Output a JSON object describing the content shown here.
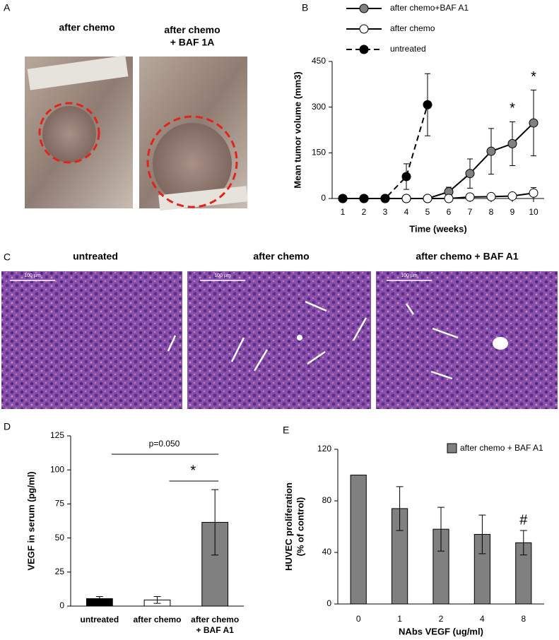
{
  "panels": {
    "A": {
      "label": "A",
      "captions": [
        "after chemo",
        "after chemo\n+ BAF 1A"
      ]
    },
    "B": {
      "label": "B"
    },
    "C": {
      "label": "C",
      "captions": [
        "untreated",
        "after chemo",
        "after chemo + BAF A1"
      ],
      "scale_bars": [
        "100 µm",
        "100 µm",
        "100 µm"
      ]
    },
    "D": {
      "label": "D"
    },
    "E": {
      "label": "E"
    }
  },
  "chart_data": [
    {
      "type": "line",
      "x_label": "Time (weeks)",
      "y_label": "Mean tumor volume (mm3)",
      "x": [
        1,
        2,
        3,
        4,
        5,
        6,
        7,
        8,
        9,
        10
      ],
      "xlim": [
        0.5,
        10.5
      ],
      "xticks": [
        1,
        2,
        3,
        4,
        5,
        6,
        7,
        8,
        9,
        10
      ],
      "ylim": [
        0,
        450
      ],
      "yticks": [
        0,
        150,
        300,
        450
      ],
      "series": [
        {
          "name": "after chemo+BAF A1",
          "color": "#808080",
          "dash": false,
          "values": [
            0,
            0,
            0,
            0,
            0,
            22,
            82,
            155,
            180,
            248
          ],
          "errors": [
            0,
            0,
            0,
            0,
            0,
            15,
            48,
            75,
            72,
            108
          ]
        },
        {
          "name": "after chemo",
          "color": "#ffffff",
          "dash": false,
          "values": [
            0,
            0,
            0,
            0,
            0,
            0,
            5,
            6,
            8,
            18
          ],
          "errors": [
            0,
            0,
            0,
            0,
            0,
            0,
            0,
            0,
            0,
            18
          ]
        },
        {
          "name": "untreated",
          "color": "#000000",
          "dash": true,
          "values": [
            0,
            0,
            0,
            72,
            308,
            null,
            null,
            null,
            null,
            null
          ],
          "errors": [
            0,
            0,
            0,
            42,
            102,
            null,
            null,
            null,
            null,
            null
          ]
        }
      ],
      "annotations": [
        {
          "text": "*",
          "x": 9
        },
        {
          "text": "*",
          "x": 10
        }
      ]
    },
    {
      "type": "bar",
      "y_label": "VEGF in serum (pg/ml)",
      "categories": [
        "untreated",
        "after chemo",
        "after chemo\n+ BAF A1"
      ],
      "values": [
        5.5,
        4.5,
        61.5
      ],
      "errors": [
        1.5,
        2.5,
        24
      ],
      "colors": [
        "#000000",
        "#ffffff",
        "#808080"
      ],
      "ylim": [
        0,
        125
      ],
      "yticks": [
        0,
        25,
        50,
        75,
        100,
        125
      ],
      "comparisons": [
        {
          "from": 0,
          "to": 2,
          "label": "p=0.050"
        },
        {
          "from": 1,
          "to": 2,
          "label": "*"
        }
      ]
    },
    {
      "type": "bar",
      "x_label": "NAbs VEGF (ug/ml)",
      "y_label": "HUVEC proliferation\n(% of control)",
      "categories": [
        "0",
        "1",
        "2",
        "4",
        "8"
      ],
      "series": [
        {
          "name": "after chemo + BAF A1",
          "color": "#808080",
          "values": [
            100,
            74,
            58,
            54,
            47.5
          ],
          "errors": [
            0,
            17,
            17,
            15,
            9.5
          ]
        }
      ],
      "ylim": [
        0,
        120
      ],
      "yticks": [
        0,
        40,
        80,
        120
      ],
      "annotations": [
        {
          "text": "#",
          "index": 4
        }
      ]
    }
  ]
}
